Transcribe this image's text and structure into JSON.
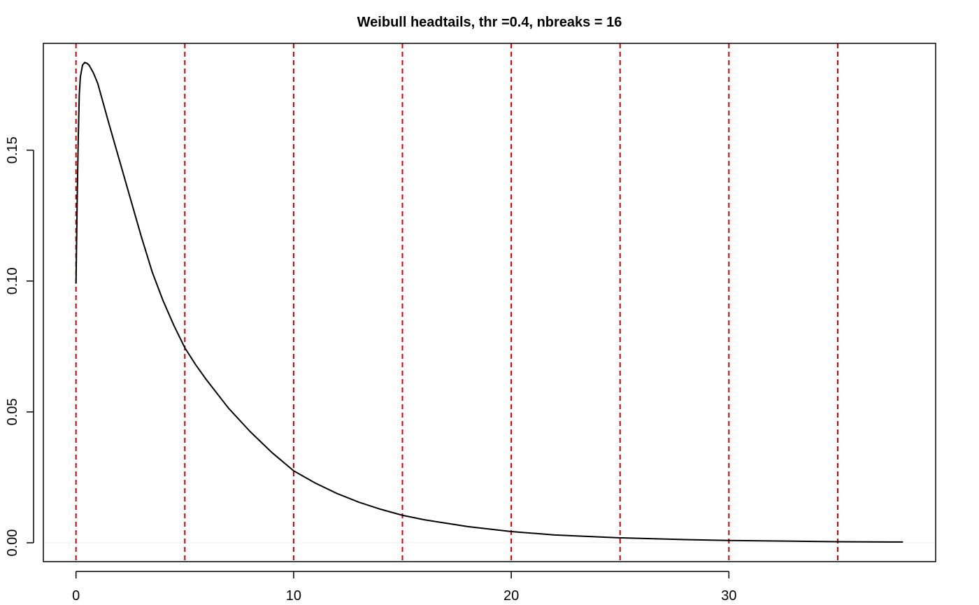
{
  "chart_data": {
    "type": "line",
    "title": "Weibull headtails, thr =0.4, nbreaks = 16",
    "xlabel": "",
    "ylabel": "",
    "xlim": [
      -1.5,
      39.5
    ],
    "ylim": [
      -0.0072,
      0.1908
    ],
    "x_ticks": [
      0,
      10,
      20,
      30
    ],
    "y_ticks": [
      0.0,
      0.05,
      0.1,
      0.15
    ],
    "x_tick_labels": [
      "0",
      "10",
      "20",
      "30"
    ],
    "y_tick_labels": [
      "0.00",
      "0.05",
      "0.10",
      "0.15"
    ],
    "grid": false,
    "legend": "none",
    "series": [
      {
        "x": [
          0.0,
          0.05,
          0.1,
          0.15,
          0.2,
          0.3,
          0.4,
          0.5,
          0.6,
          0.8,
          1.0,
          1.5,
          2.0,
          2.5,
          3.0,
          3.5,
          4.0,
          4.5,
          5.0,
          5.5,
          6.0,
          7.0,
          8.0,
          9.0,
          10.0,
          11.0,
          12.0,
          13.0,
          14.0,
          15.0,
          16.0,
          18.0,
          20.0,
          22.0,
          25.0,
          28.0,
          30.0,
          33.0,
          35.0,
          38.0
        ],
        "values": [
          0.099,
          0.128,
          0.153,
          0.171,
          0.178,
          0.1825,
          0.1835,
          0.1832,
          0.1825,
          0.1795,
          0.1755,
          0.1605,
          0.146,
          0.1315,
          0.117,
          0.1035,
          0.0925,
          0.083,
          0.0745,
          0.068,
          0.0622,
          0.0515,
          0.0425,
          0.0345,
          0.0275,
          0.0228,
          0.0188,
          0.0155,
          0.0128,
          0.0105,
          0.0088,
          0.0062,
          0.0043,
          0.003,
          0.0019,
          0.0012,
          0.0009,
          0.0006,
          0.0004,
          0.0003
        ],
        "color": "#000000"
      }
    ],
    "vlines": [
      0,
      5,
      10,
      15,
      20,
      25,
      30,
      35
    ],
    "hline": 0,
    "colors": {
      "curve": "#000000",
      "vlines": "#cc0000",
      "hline": "#eeeeee",
      "frame": "#000000"
    }
  }
}
